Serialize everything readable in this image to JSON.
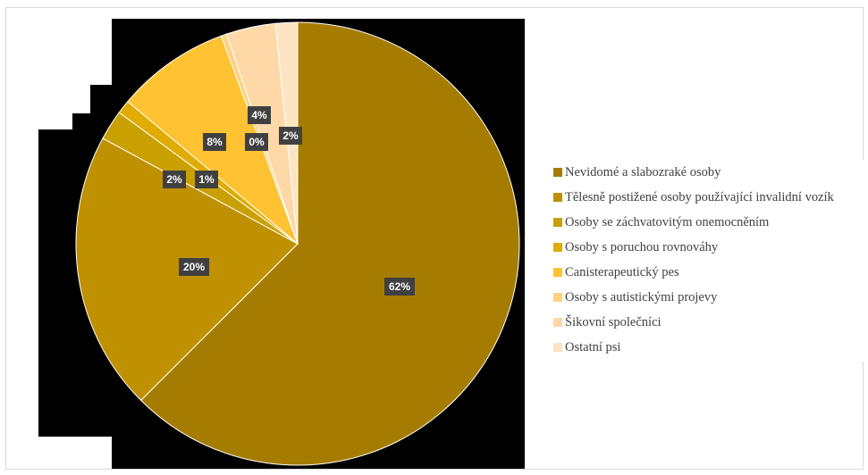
{
  "chart_data": {
    "type": "pie",
    "title": "",
    "start_angle_deg": 0,
    "direction": "clockwise",
    "categories": [
      "Nevidomé a slabozraké osoby",
      "Tělesně postižené osoby používající invalidní vozík",
      "Osoby se záchvatovitým onemocněním",
      "Osoby s poruchou rovnováhy",
      "Canisterapeutický pes",
      "Osoby s autistickými projevy",
      "Šikovní společníci",
      "Ostatní psi"
    ],
    "values": [
      62.5,
      20.4,
      2.2,
      1.0,
      8.3,
      0.4,
      3.6,
      1.6
    ],
    "data_labels": [
      "62%",
      "20%",
      "2%",
      "1%",
      "8%",
      "0%",
      "4%",
      "2%"
    ],
    "colors": [
      "#A67C00",
      "#BF9000",
      "#C9A000",
      "#E0AC00",
      "#FFC233",
      "#FFD280",
      "#FFD8A8",
      "#FFE4C4"
    ],
    "legend_position": "right"
  }
}
